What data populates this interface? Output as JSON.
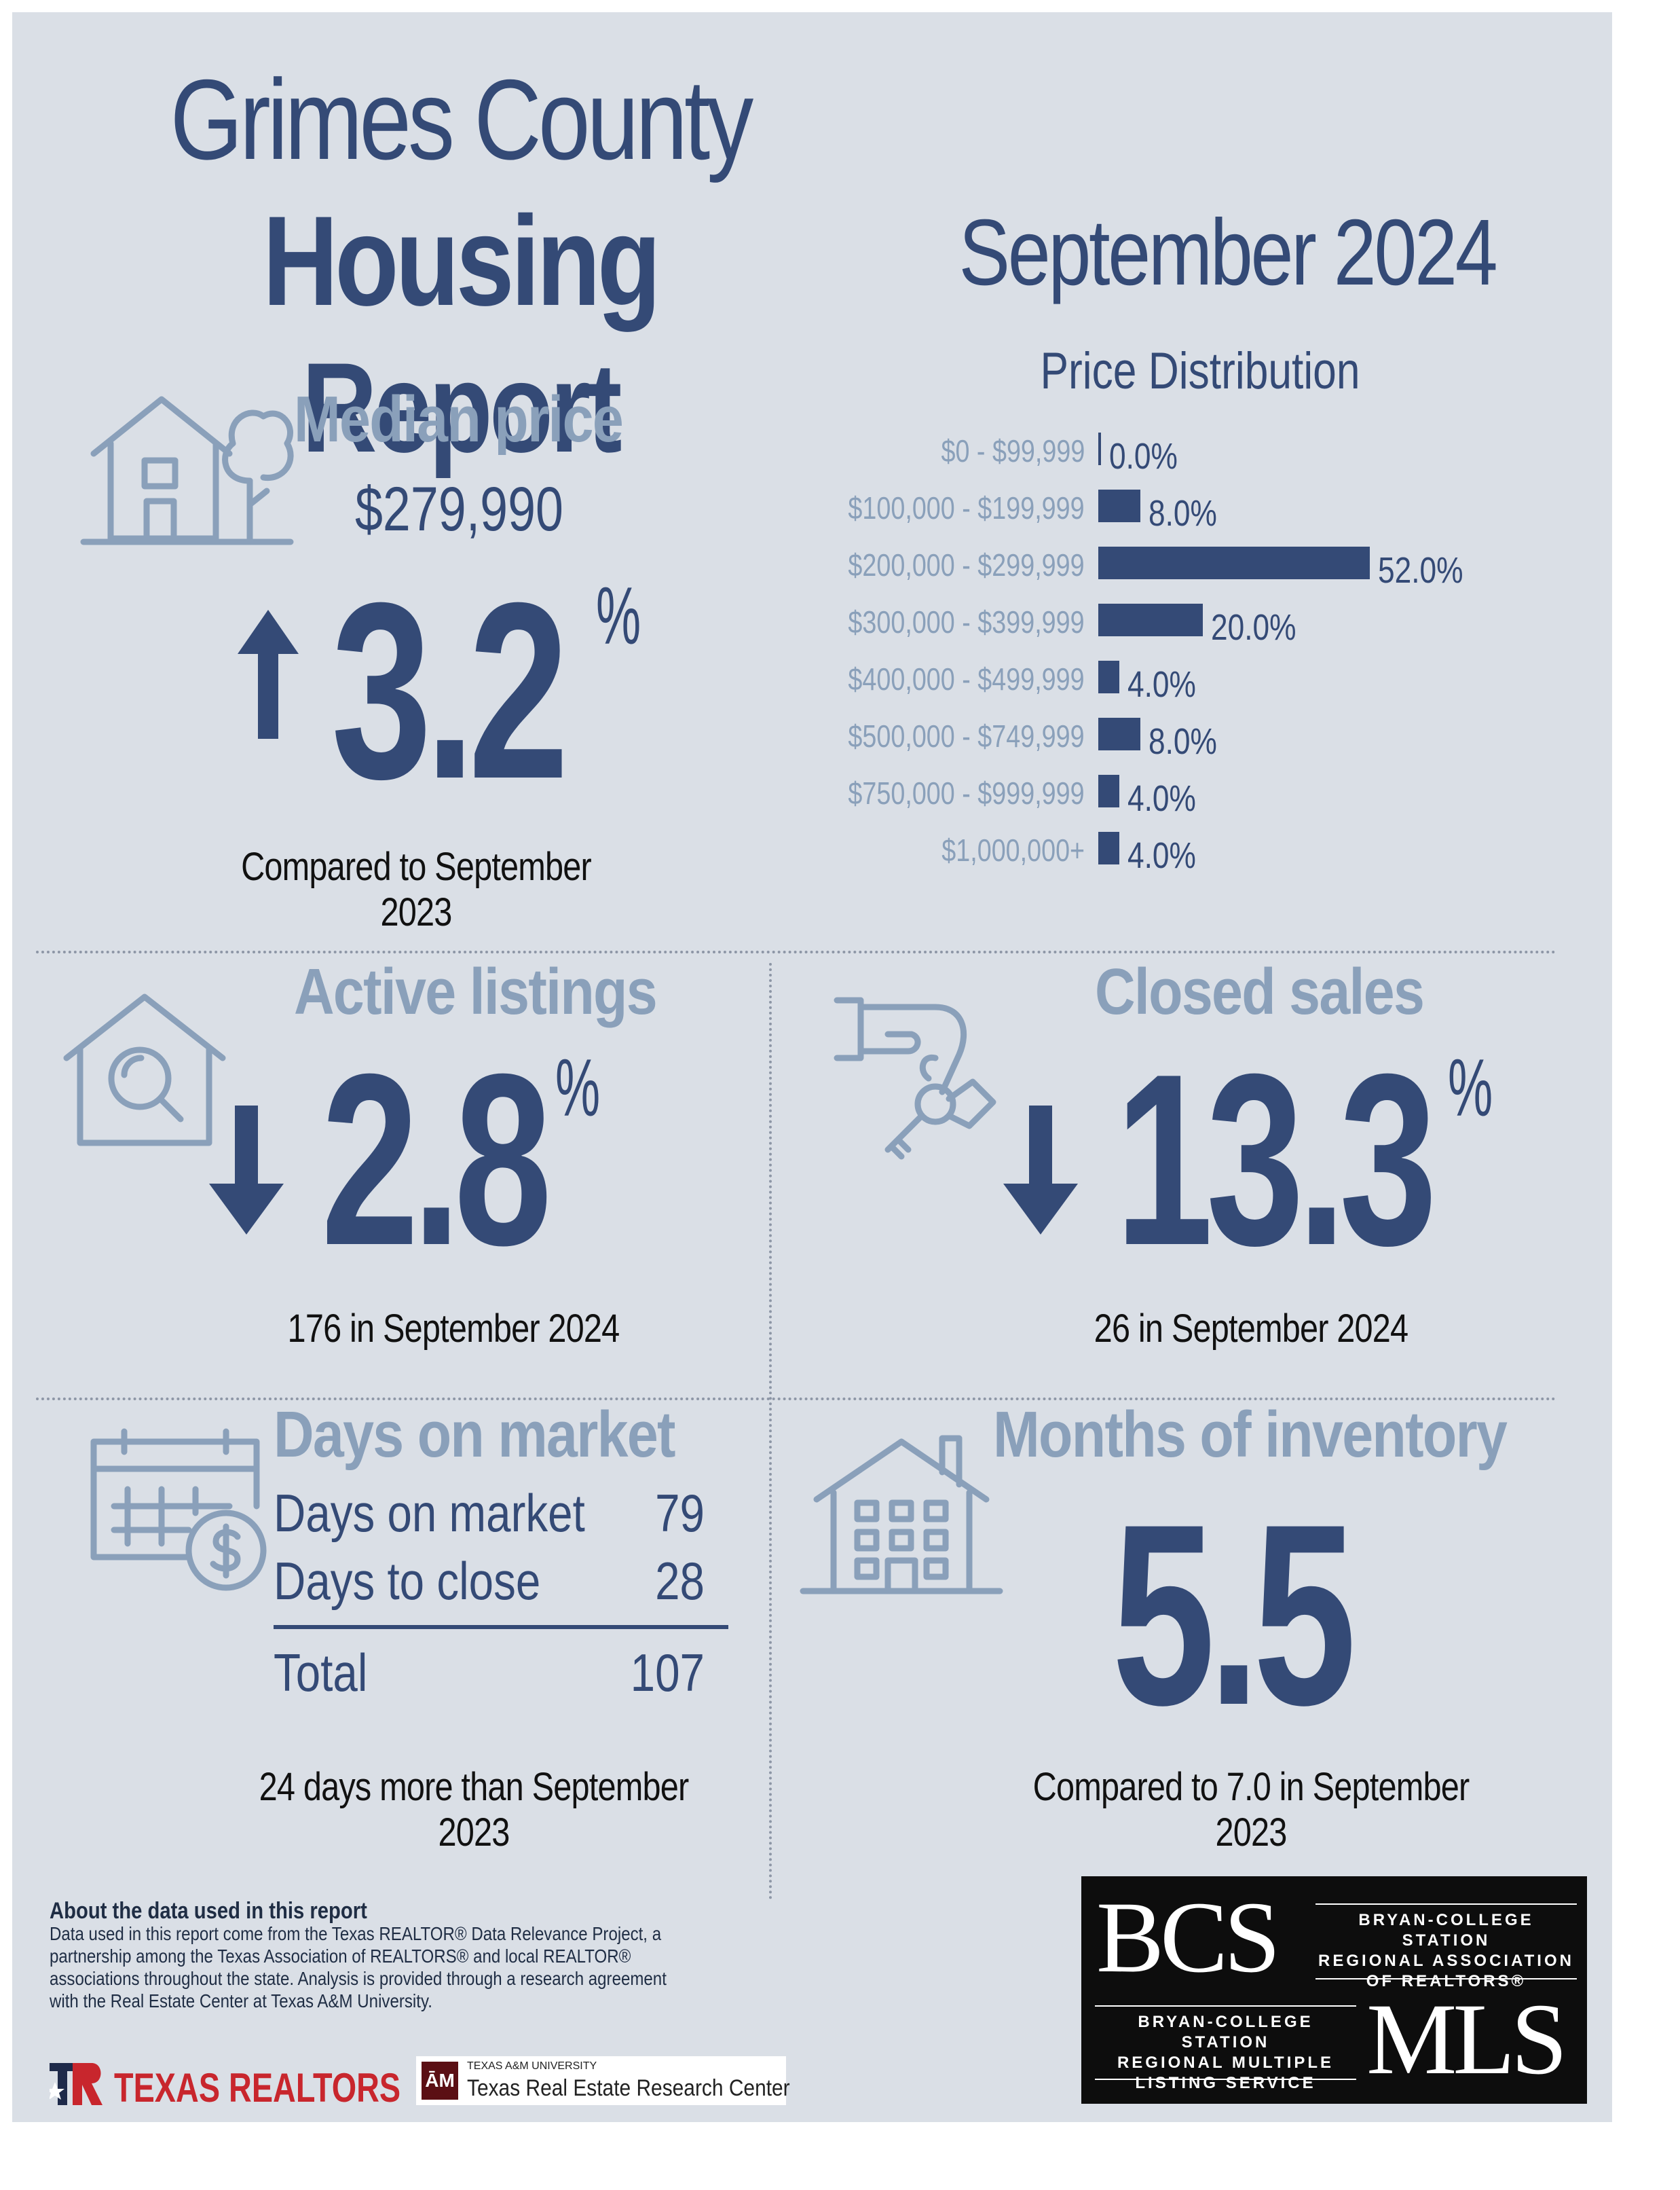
{
  "header": {
    "title_line1": "Grimes County",
    "title_line2": "Housing Report",
    "month": "September 2024"
  },
  "median_price": {
    "label": "Median price",
    "value": "$279,990",
    "change": "3.2",
    "unit": "%",
    "direction": "up",
    "caption": "Compared to September 2023",
    "icon": "house-tree-icon"
  },
  "price_distribution": {
    "title": "Price Distribution",
    "chart_data": {
      "type": "bar",
      "categories": [
        "$0 - $99,999",
        "$100,000 - $199,999",
        "$200,000 - $299,999",
        "$300,000 - $399,999",
        "$400,000 - $499,999",
        "$500,000 - $749,999",
        "$750,000 - $999,999",
        "$1,000,000+"
      ],
      "values": [
        0.0,
        8.0,
        52.0,
        20.0,
        4.0,
        8.0,
        4.0,
        4.0
      ],
      "value_labels": [
        "0.0%",
        "8.0%",
        "52.0%",
        "20.0%",
        "4.0%",
        "8.0%",
        "4.0%",
        "4.0%"
      ],
      "orientation": "horizontal"
    }
  },
  "active_listings": {
    "label": "Active listings",
    "change": "2.8",
    "unit": "%",
    "direction": "down",
    "caption": "176 in September 2024",
    "icon": "house-magnifier-icon"
  },
  "closed_sales": {
    "label": "Closed sales",
    "change": "13.3",
    "unit": "%",
    "direction": "down",
    "caption": "26 in September 2024",
    "icon": "hand-keys-icon"
  },
  "days_on_market": {
    "label": "Days on market",
    "rows": [
      {
        "label": "Days on market",
        "value": "79"
      },
      {
        "label": "Days to close",
        "value": "28"
      }
    ],
    "total_label": "Total",
    "total_value": "107",
    "caption": "24 days more than September 2023",
    "icon": "calendar-dollar-icon"
  },
  "months_inventory": {
    "label": "Months of inventory",
    "value": "5.5",
    "caption": "Compared to 7.0 in September 2023",
    "icon": "building-icon"
  },
  "about": {
    "heading": "About the data used in this report",
    "lines": [
      "Data used in this report come from the Texas REALTOR® Data Relevance Project, a",
      "partnership among the Texas Association of REALTORS® and local REALTOR®",
      "associations throughout the state. Analysis is provided through a research agreement",
      "with the Real Estate Center at Texas A&M University."
    ]
  },
  "logos": {
    "texas_realtors": "TEXAS REALTORS",
    "tamu_small": "TEXAS A&M UNIVERSITY",
    "tamu_center": "Texas Real Estate Research Center",
    "bcs_mark": "BCS",
    "bcs_text": [
      "BRYAN-COLLEGE STATION",
      "REGIONAL ASSOCIATION",
      "OF REALTORS®"
    ],
    "mls_text": [
      "BRYAN-COLLEGE STATION",
      "REGIONAL MULTIPLE",
      "LISTING SERVICE"
    ],
    "mls_mark": "MLS"
  },
  "colors": {
    "navy": "#344a76",
    "light_blue": "#8aa0ba",
    "background": "#dadfe6",
    "logo_red": "#c8262d"
  }
}
